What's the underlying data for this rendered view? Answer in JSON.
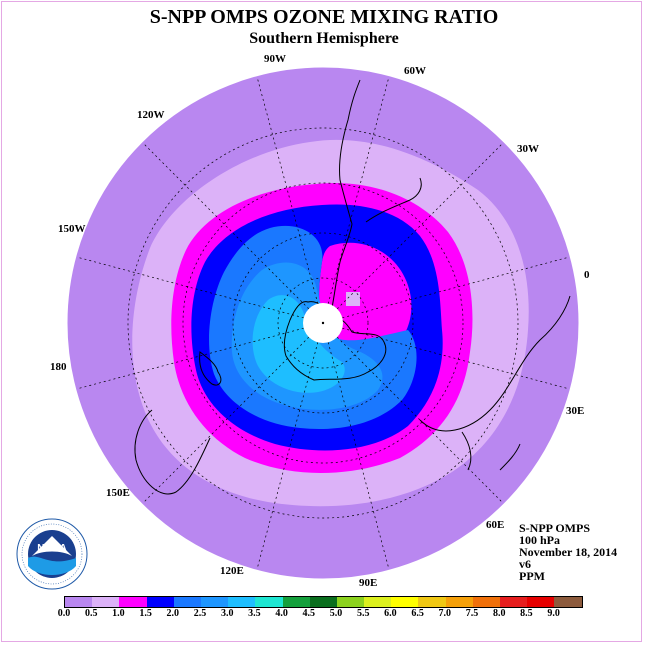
{
  "title": "S-NPP OMPS OZONE MIXING RATIO",
  "subtitle": "Southern Hemisphere",
  "longitude_labels": [
    "90W",
    "60W",
    "30W",
    "0",
    "30E",
    "60E",
    "90E",
    "120E",
    "150E",
    "180",
    "150W",
    "120W"
  ],
  "info": {
    "instrument": "S-NPP OMPS",
    "level": "100 hPa",
    "date": "November 18, 2014",
    "version": "v6",
    "units": "PPM"
  },
  "logo": {
    "center_text": "NOAA",
    "ring_text": "NATIONAL OCEANIC AND ATMOSPHERIC ADMINISTRATION · U.S. DEPARTMENT OF COMMERCE",
    "icon": "noaa-logo"
  },
  "colorbar": {
    "colors": [
      "#b987f0",
      "#dcb2f8",
      "#ff00ff",
      "#0000ff",
      "#1a78ff",
      "#1e96ff",
      "#1ebeff",
      "#1ee6d2",
      "#14a03c",
      "#0a6e1e",
      "#8cd21e",
      "#dcf01e",
      "#ffff00",
      "#f0c814",
      "#f5a00a",
      "#f0700a",
      "#e61e1e",
      "#e60000",
      "#8c5a3c"
    ],
    "tick_labels": [
      "0.0",
      "0.5",
      "1.0",
      "1.5",
      "2.0",
      "2.5",
      "3.0",
      "3.5",
      "4.0",
      "4.5",
      "5.0",
      "5.5",
      "6.0",
      "6.5",
      "7.0",
      "7.5",
      "8.0",
      "8.5",
      "9.0"
    ]
  },
  "legend_colors": {
    "0.0-0.5": "#b987f0",
    "0.5-1.0": "#dcb2f8",
    "1.0-1.5": "#ff00ff",
    "1.5-2.0": "#0000ff",
    "2.0-2.5": "#1a78ff",
    "2.5-3.0": "#1e96ff",
    "3.0-3.5": "#1ebeff"
  }
}
